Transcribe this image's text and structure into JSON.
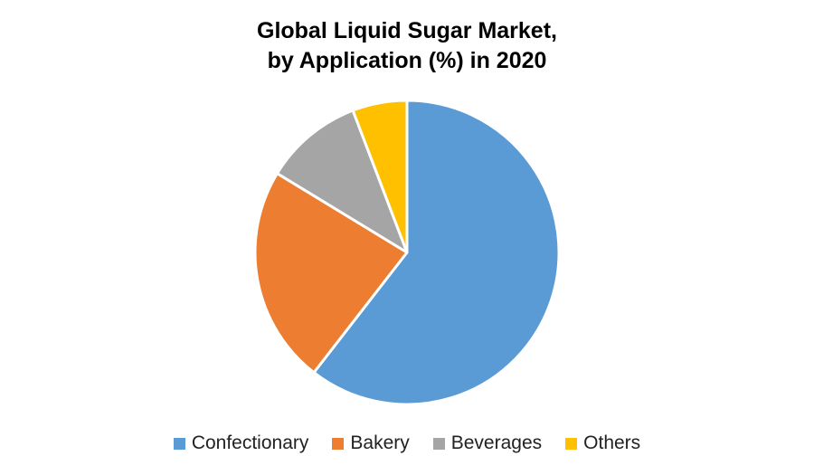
{
  "title": {
    "line1": "Global Liquid Sugar Market,",
    "line2": "by Application (%) in 2020"
  },
  "chart_data": {
    "type": "pie",
    "title": "Global Liquid Sugar Market, by Application (%) in 2020",
    "categories": [
      "Confectionary",
      "Bakery",
      "Beverages",
      "Others"
    ],
    "values": [
      60.5,
      23.2,
      10.5,
      5.8
    ],
    "colors": [
      "#5B9BD5",
      "#ED7D31",
      "#A5A5A5",
      "#FFC000"
    ],
    "start_angle_deg": 0,
    "direction": "clockwise",
    "legend_position": "bottom",
    "data_labels": false
  },
  "legend": {
    "items": [
      {
        "label": "Confectionary",
        "color": "#5B9BD5"
      },
      {
        "label": "Bakery",
        "color": "#ED7D31"
      },
      {
        "label": "Beverages",
        "color": "#A5A5A5"
      },
      {
        "label": "Others",
        "color": "#FFC000"
      }
    ]
  }
}
